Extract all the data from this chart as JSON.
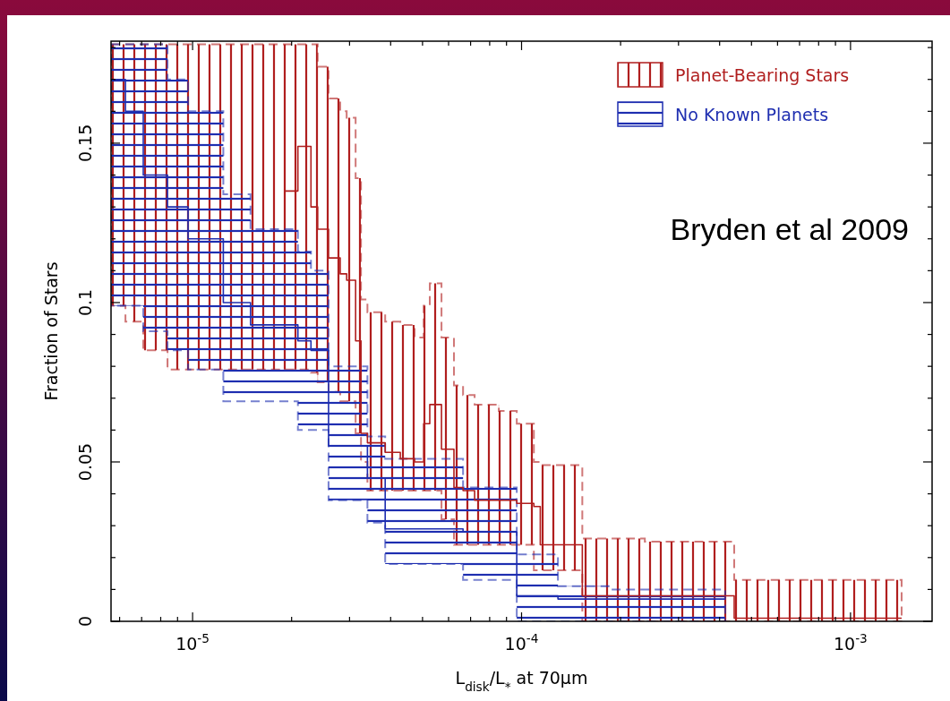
{
  "chart_data": {
    "type": "step",
    "xlabel": "L$_{disk}$/L$_{*}$ at 70μm",
    "ylabel": "Fraction of Stars",
    "log": "x",
    "legend": "top right",
    "xlim": [
      5.65e-06,
      0.00177
    ],
    "ylim": [
      0,
      0.182
    ],
    "xticks": [
      {
        "value": 6e-06,
        "label": null
      },
      {
        "value": 7e-06,
        "label": null
      },
      {
        "value": 8e-06,
        "label": null
      },
      {
        "value": 9e-06,
        "label": null
      },
      {
        "value": 1e-05,
        "label": "10$^{-5}$"
      },
      {
        "value": 2e-05,
        "label": null
      },
      {
        "value": 3e-05,
        "label": null
      },
      {
        "value": 4e-05,
        "label": null
      },
      {
        "value": 5e-05,
        "label": null
      },
      {
        "value": 6e-05,
        "label": null
      },
      {
        "value": 7e-05,
        "label": null
      },
      {
        "value": 8e-05,
        "label": null
      },
      {
        "value": 9e-05,
        "label": null
      },
      {
        "value": 0.0001,
        "label": "10$^{-4}$"
      },
      {
        "value": 0.0002,
        "label": null
      },
      {
        "value": 0.0003,
        "label": null
      },
      {
        "value": 0.0004,
        "label": null
      },
      {
        "value": 0.0005,
        "label": null
      },
      {
        "value": 0.0006,
        "label": null
      },
      {
        "value": 0.0007,
        "label": null
      },
      {
        "value": 0.0008,
        "label": null
      },
      {
        "value": 0.0009,
        "label": null
      },
      {
        "value": 0.001,
        "label": "10$^{-3}$"
      }
    ],
    "yticks": [
      0,
      {
        "value": 0.01,
        "label": null
      },
      {
        "value": 0.02,
        "label": null
      },
      {
        "value": 0.03,
        "label": null
      },
      {
        "value": 0.04,
        "label": null
      },
      0.05,
      {
        "value": 0.06,
        "label": null
      },
      {
        "value": 0.07,
        "label": null
      },
      {
        "value": 0.08,
        "label": null
      },
      {
        "value": 0.09,
        "label": null
      },
      0.1,
      {
        "value": 0.11,
        "label": null
      },
      {
        "value": 0.12,
        "label": null
      },
      {
        "value": 0.13,
        "label": null
      },
      {
        "value": 0.14,
        "label": null
      },
      0.15,
      {
        "value": 0.16,
        "label": null
      },
      {
        "value": 0.17,
        "label": null
      },
      {
        "value": 0.18,
        "label": null
      }
    ],
    "annotations": [
      "Bryden et al 2009"
    ],
    "series": [
      {
        "name": "Planet-Bearing Stars",
        "color": "#b01e1e",
        "x": [
          5.65e-06,
          6.25e-06,
          7.08e-06,
          8.39e-06,
          1.24e-05,
          1.5e-05,
          1.91e-05,
          2.09e-05,
          2.29e-05,
          2.4e-05,
          2.59e-05,
          2.81e-05,
          2.94e-05,
          3.13e-05,
          3.25e-05,
          3.4e-05,
          3.85e-05,
          4.28e-05,
          4.73e-05,
          5.04e-05,
          5.26e-05,
          5.71e-05,
          6.23e-05,
          6.64e-05,
          7.2e-05,
          8.53e-05,
          9.67e-05,
          0.000109,
          0.000114,
          0.000153,
          0.000237,
          0.000443,
          0.000731,
          0.00143
        ],
        "values": [
          null,
          null,
          null,
          null,
          null,
          null,
          0.135,
          0.149,
          0.13,
          0.123,
          0.114,
          0.109,
          0.107,
          0.088,
          0.059,
          0.056,
          0.053,
          0.051,
          0.05,
          0.062,
          0.068,
          0.054,
          0.042,
          0.041,
          0.038,
          0.038,
          0.037,
          0.036,
          0.024,
          0.008,
          0.008,
          0.001,
          0.001,
          0.001
        ],
        "upper": [
          0.181,
          0.181,
          0.181,
          0.181,
          0.181,
          0.181,
          0.181,
          0.181,
          0.181,
          0.174,
          0.164,
          0.16,
          0.158,
          0.139,
          0.101,
          0.097,
          0.094,
          0.093,
          0.089,
          0.099,
          0.106,
          0.089,
          0.074,
          0.071,
          0.068,
          0.066,
          0.062,
          0.05,
          0.049,
          0.026,
          0.025,
          0.013,
          0.013,
          0.013
        ],
        "lower": [
          0.099,
          0.094,
          0.085,
          0.079,
          0.079,
          0.079,
          0.079,
          0.079,
          0.078,
          0.075,
          0.072,
          0.069,
          0.069,
          0.059,
          0.05,
          0.041,
          0.041,
          0.041,
          0.041,
          0.041,
          0.041,
          0.032,
          0.024,
          0.024,
          0.024,
          0.024,
          0.024,
          0.016,
          0.016,
          0,
          0,
          0,
          0,
          0
        ]
      },
      {
        "name": "No Known Planets",
        "color": "#1e2eb0",
        "x": [
          5.65e-06,
          6.25e-06,
          7.08e-06,
          8.39e-06,
          9.69e-06,
          1.24e-05,
          1.5e-05,
          2.09e-05,
          2.29e-05,
          2.59e-05,
          3.4e-05,
          3.85e-05,
          6.64e-05,
          9.67e-05,
          0.000129,
          0.000184,
          0.000416
        ],
        "values": [
          0.17,
          0.16,
          0.14,
          0.13,
          0.12,
          0.1,
          0.093,
          0.088,
          0.085,
          0.055,
          0.045,
          0.029,
          0.028,
          0.008,
          0.007,
          0.007,
          0.007
        ],
        "upper": [
          0.181,
          0.181,
          0.181,
          0.17,
          0.16,
          0.134,
          0.123,
          0.116,
          0.11,
          0.08,
          0.058,
          0.051,
          0.042,
          0.021,
          0.011,
          0.01,
          0.01
        ],
        "lower": [
          0.099,
          0.099,
          0.091,
          0.085,
          0.079,
          0.069,
          0.069,
          0.06,
          0.06,
          0.038,
          0.031,
          0.018,
          0.013,
          0,
          0,
          0,
          0
        ]
      }
    ]
  }
}
